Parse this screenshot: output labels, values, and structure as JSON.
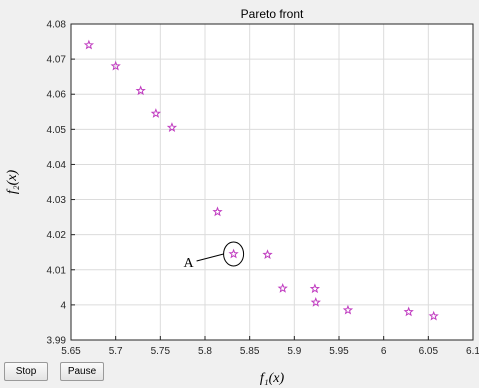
{
  "chart_data": {
    "type": "scatter",
    "title": "Pareto front",
    "xlabel": "f₁(x)",
    "ylabel": "f₂(x)",
    "xlim": [
      5.65,
      6.1
    ],
    "ylim": [
      3.99,
      4.08
    ],
    "xticks": [
      5.65,
      5.7,
      5.75,
      5.8,
      5.85,
      5.9,
      5.95,
      6,
      6.05,
      6.1
    ],
    "xtick_labels": [
      "5.65",
      "5.7",
      "5.75",
      "5.8",
      "5.85",
      "5.9",
      "5.95",
      "6",
      "6.05",
      "6.1"
    ],
    "yticks": [
      3.99,
      4,
      4.01,
      4.02,
      4.03,
      4.04,
      4.05,
      4.06,
      4.07,
      4.08
    ],
    "ytick_labels": [
      "3.99",
      "4",
      "4.01",
      "4.02",
      "4.03",
      "4.04",
      "4.05",
      "4.06",
      "4.07",
      "4.08"
    ],
    "grid": true,
    "marker": "pentagram",
    "marker_color": "#c03cc0",
    "series": [
      {
        "points": [
          [
            5.67,
            4.074
          ],
          [
            5.7,
            4.068
          ],
          [
            5.728,
            4.061
          ],
          [
            5.745,
            4.0545
          ],
          [
            5.763,
            4.0505
          ],
          [
            5.814,
            4.0265
          ],
          [
            5.832,
            4.0145
          ],
          [
            5.87,
            4.0143
          ],
          [
            5.887,
            4.0047
          ],
          [
            5.923,
            4.0046
          ],
          [
            5.924,
            4.0007
          ],
          [
            5.96,
            3.9985
          ],
          [
            6.028,
            3.998
          ],
          [
            6.056,
            3.9968
          ]
        ]
      }
    ],
    "annotations": [
      {
        "text": "A",
        "x": 5.832,
        "y": 4.0145,
        "shape": "ellipse"
      }
    ]
  },
  "controls": {
    "stop_label": "Stop",
    "pause_label": "Pause"
  }
}
